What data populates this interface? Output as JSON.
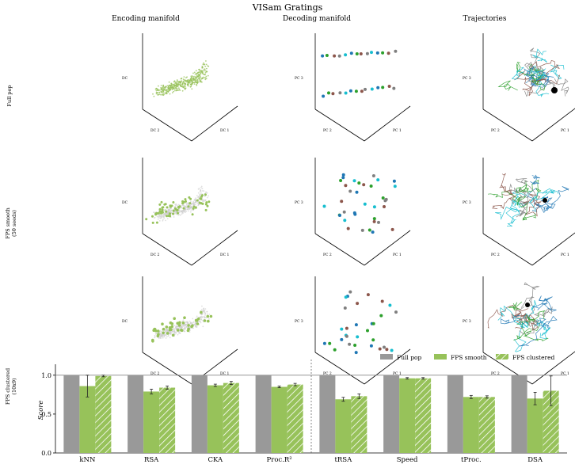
{
  "title": "VISam Gratings",
  "column_titles": [
    "Encoding manifold",
    "Decoding manifold",
    "Trajectories"
  ],
  "row_labels": [
    [
      "Full pop"
    ],
    [
      "FPS smooth",
      "(50 seeds)"
    ],
    [
      "FPS clustered",
      "(10x9)"
    ]
  ],
  "axis_labels": {
    "encoding": {
      "x": "DC 2",
      "y": "DC 1",
      "z": "DC"
    },
    "decoding": {
      "x": "PC 2",
      "y": "PC 1",
      "z": "PC 3"
    },
    "trajectories": {
      "x": "PC 2",
      "y": "PC 1",
      "z": "PC 3"
    }
  },
  "colors": {
    "full_pop": "#999999",
    "fps": "#97c25a",
    "traj_cyan": "#17becf",
    "traj_blue": "#1f77b4",
    "traj_brown": "#8c564b",
    "traj_green": "#2ca02c",
    "traj_grey": "#7f7f7f",
    "black": "#000000"
  },
  "chart_data": {
    "type": "bar",
    "title": "",
    "ylabel": "Score",
    "ylim": [
      0,
      1.1
    ],
    "yticks": [
      "0.0",
      "0.5",
      "1.0"
    ],
    "reference_line": 1.0,
    "legend_position": "top-right",
    "categories": [
      "kNN",
      "RSA",
      "CKA",
      "Proc.R²",
      "tRSA",
      "Speed",
      "tProc.",
      "DSA"
    ],
    "series": [
      {
        "name": "Full pop",
        "values": [
          1.0,
          1.0,
          1.0,
          1.0,
          1.0,
          1.0,
          1.0,
          1.0
        ],
        "errors": [
          0,
          0,
          0,
          0,
          0,
          0,
          0,
          0
        ]
      },
      {
        "name": "FPS smooth",
        "values": [
          0.86,
          0.79,
          0.87,
          0.85,
          0.69,
          0.96,
          0.72,
          0.7
        ],
        "errors": [
          0.14,
          0.03,
          0.015,
          0.01,
          0.025,
          0.01,
          0.02,
          0.08
        ]
      },
      {
        "name": "FPS clustered",
        "values": [
          0.99,
          0.84,
          0.9,
          0.88,
          0.73,
          0.96,
          0.72,
          0.8
        ],
        "errors": [
          0.01,
          0.02,
          0.02,
          0.015,
          0.03,
          0.01,
          0.015,
          0.19
        ]
      }
    ]
  }
}
